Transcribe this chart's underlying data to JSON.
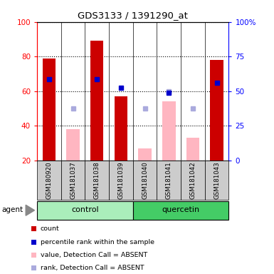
{
  "title": "GDS3133 / 1391290_at",
  "samples": [
    "GSM180920",
    "GSM181037",
    "GSM181038",
    "GSM181039",
    "GSM181040",
    "GSM181041",
    "GSM181042",
    "GSM181043"
  ],
  "red_bars": [
    79,
    null,
    89,
    57,
    null,
    null,
    null,
    78
  ],
  "red_bar_color": "#CC0000",
  "pink_bars": [
    null,
    38,
    null,
    null,
    27,
    54,
    33,
    null
  ],
  "pink_bar_color": "#FFB6C1",
  "blue_squares": [
    67,
    null,
    67,
    62,
    null,
    59,
    null,
    65
  ],
  "blue_square_color": "#0000CC",
  "lavender_squares": [
    null,
    50,
    null,
    null,
    50,
    60,
    50,
    null
  ],
  "lavender_square_color": "#AAAADD",
  "ylim_left": [
    20,
    100
  ],
  "ylim_right": [
    0,
    100
  ],
  "yticks_left": [
    20,
    40,
    60,
    80,
    100
  ],
  "yticks_right": [
    0,
    25,
    50,
    75,
    100
  ],
  "yticklabels_right": [
    "0",
    "25",
    "50",
    "75",
    "100%"
  ],
  "bar_bottom": 20,
  "control_color": "#AAEEBB",
  "quercetin_color": "#44CC66",
  "sample_box_color": "#CCCCCC",
  "legend": [
    {
      "label": "count",
      "color": "#CC0000"
    },
    {
      "label": "percentile rank within the sample",
      "color": "#0000CC"
    },
    {
      "label": "value, Detection Call = ABSENT",
      "color": "#FFB6C1"
    },
    {
      "label": "rank, Detection Call = ABSENT",
      "color": "#AAAADD"
    }
  ]
}
